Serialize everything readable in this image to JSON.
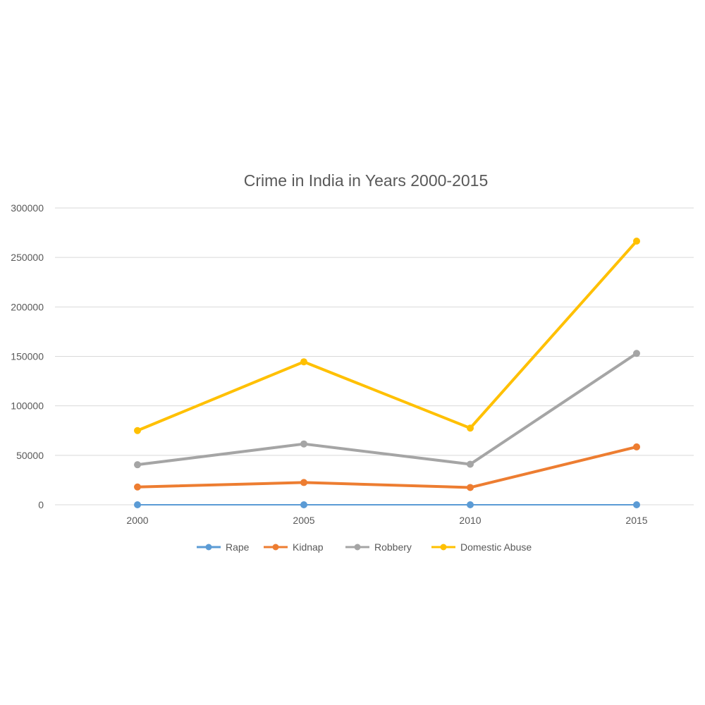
{
  "chart_data": {
    "type": "line",
    "title": "Crime in India in Years 2000-2015",
    "xlabel": "",
    "ylabel": "",
    "categories": [
      "2000",
      "2005",
      "2010",
      "2015"
    ],
    "ylim": [
      0,
      300000
    ],
    "yticks": [
      "0",
      "50000",
      "100000",
      "150000",
      "200000",
      "250000",
      "300000"
    ],
    "grid": true,
    "legend_position": "bottom",
    "series": [
      {
        "name": "Rape",
        "color": "#5b9bd5",
        "values": [
          0,
          0,
          0,
          0
        ]
      },
      {
        "name": "Kidnap",
        "color": "#ed7d31",
        "values": [
          18000,
          22500,
          17500,
          58500
        ]
      },
      {
        "name": "Robbery",
        "color": "#a5a5a5",
        "values": [
          40500,
          61500,
          41000,
          153000
        ]
      },
      {
        "name": "Domestic Abuse",
        "color": "#ffc000",
        "values": [
          75000,
          144500,
          77500,
          266500
        ]
      }
    ]
  }
}
